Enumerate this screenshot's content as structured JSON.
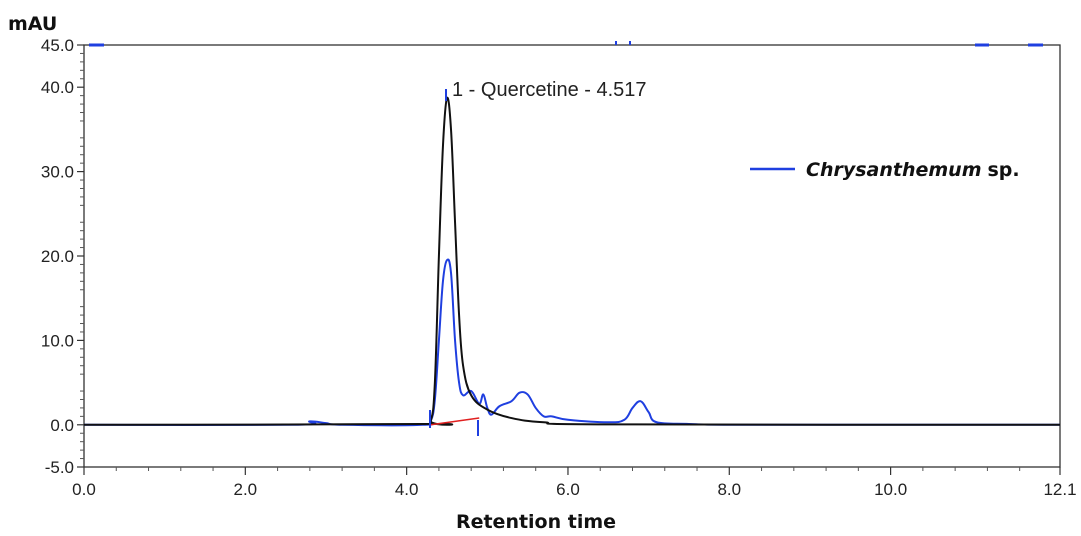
{
  "chart_data": {
    "type": "line",
    "ylabel": "mAU",
    "xlabel": "Retention time",
    "xlim": [
      0.0,
      12.1
    ],
    "ylim": [
      -5.0,
      45.0
    ],
    "x_ticks": [
      "0.0",
      "2.0",
      "4.0",
      "6.0",
      "8.0",
      "10.0",
      "12.1"
    ],
    "x_tick_values": [
      0.0,
      2.0,
      4.0,
      6.0,
      8.0,
      10.0,
      12.1
    ],
    "y_ticks": [
      "-5.0",
      "0.0",
      "10.0",
      "20.0",
      "30.0",
      "40.0",
      "45.0"
    ],
    "y_tick_values": [
      -5.0,
      0.0,
      10.0,
      20.0,
      30.0,
      40.0,
      45.0
    ],
    "grid": false,
    "legend": {
      "position": "top-right",
      "italic_part": "Chrysanthemum",
      "plain_part": "sp."
    },
    "annotation": {
      "text": "1 - Quercetine - 4.517",
      "x": 4.517
    },
    "series": [
      {
        "name": "Chrysanthemum sp.",
        "color": "#1f3fe0",
        "x": [
          0.0,
          2.6,
          2.8,
          3.0,
          3.2,
          4.2,
          4.3,
          4.35,
          4.4,
          4.45,
          4.5,
          4.55,
          4.6,
          4.65,
          4.7,
          4.8,
          4.9,
          4.95,
          5.0,
          5.05,
          5.15,
          5.3,
          5.4,
          5.5,
          5.6,
          5.7,
          5.8,
          6.0,
          6.5,
          6.7,
          6.8,
          6.9,
          7.0,
          7.1,
          7.5,
          8.0,
          10.0,
          12.1
        ],
        "y": [
          0.0,
          0.0,
          0.4,
          0.2,
          0.0,
          0.0,
          0.5,
          3.0,
          10.0,
          17.0,
          19.5,
          18.0,
          10.0,
          5.0,
          3.5,
          4.0,
          2.5,
          3.6,
          2.0,
          1.2,
          2.2,
          2.8,
          3.8,
          3.6,
          2.0,
          1.0,
          1.0,
          0.6,
          0.3,
          0.6,
          2.0,
          2.8,
          1.5,
          0.3,
          0.1,
          0.0,
          0.0,
          0.0
        ]
      },
      {
        "color": "#111111",
        "x": [
          0.0,
          4.2,
          4.3,
          4.35,
          4.4,
          4.45,
          4.5,
          4.55,
          4.6,
          4.65,
          4.7,
          4.8,
          5.0,
          5.3,
          5.7,
          6.5,
          12.1
        ],
        "y": [
          0.0,
          0.1,
          0.5,
          5.0,
          20.0,
          33.0,
          38.7,
          35.0,
          24.0,
          13.0,
          7.0,
          3.5,
          1.8,
          0.8,
          0.3,
          0.05,
          0.0
        ]
      },
      {
        "color": "#e02020",
        "x": [
          4.3,
          4.9
        ],
        "y": [
          0.0,
          0.8
        ]
      }
    ]
  },
  "colors": {
    "axis": "#333333",
    "blue_marker": "#1f3fe0"
  }
}
